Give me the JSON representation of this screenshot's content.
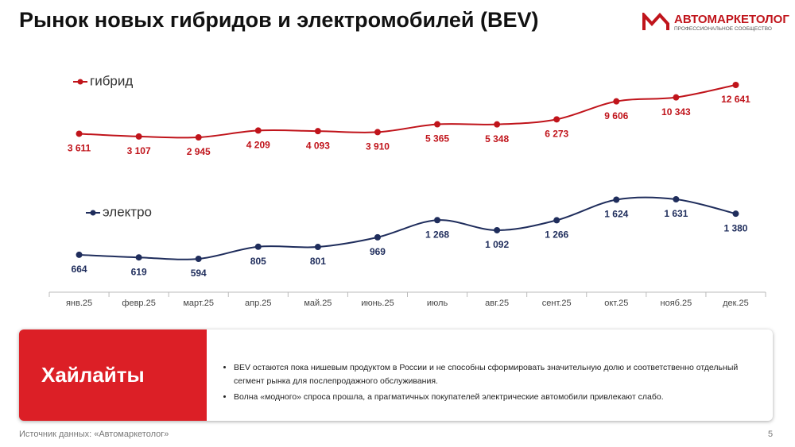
{
  "header": {
    "title": "Рынок новых гибридов и электромобилей (BEV)",
    "logo_name": "АВТОМАРКЕТОЛОГ",
    "logo_tagline": "ПРОФЕССИОНАЛЬНОЕ СООБЩЕСТВО"
  },
  "chart_data": {
    "type": "line",
    "categories": [
      "янв.25",
      "февр.25",
      "март.25",
      "апр.25",
      "май.25",
      "июнь.25",
      "июль",
      "авг.25",
      "сент.25",
      "окт.25",
      "нояб.25",
      "дек.25"
    ],
    "series": [
      {
        "name": "гибрид",
        "color": "#c0141b",
        "values": [
          3611,
          3107,
          2945,
          4209,
          4093,
          3910,
          5365,
          5348,
          6273,
          9606,
          10343,
          12641
        ],
        "value_labels": [
          "3 611",
          "3 107",
          "2 945",
          "4 209",
          "4 093",
          "3 910",
          "5 365",
          "5 348",
          "6 273",
          "9 606",
          "10 343",
          "12 641"
        ]
      },
      {
        "name": "электро",
        "color": "#1f2d5c",
        "values": [
          664,
          619,
          594,
          805,
          801,
          969,
          1268,
          1092,
          1266,
          1624,
          1631,
          1380
        ],
        "value_labels": [
          "664",
          "619",
          "594",
          "805",
          "801",
          "969",
          "1 268",
          "1 092",
          "1 266",
          "1 624",
          "1 631",
          "1 380"
        ]
      }
    ]
  },
  "highlights": {
    "title": "Хайлайты",
    "bullets": [
      "BEV остаются пока нишевым продуктом в России и не способны сформировать значительную долю и соответственно отдельный сегмент рынка для послепродажного обслуживания.",
      "Волна «модного» спроса прошла, а прагматичных покупателей электрические автомобили привлекают слабо."
    ]
  },
  "footer": {
    "source": "Источник данных: «Автомаркетолог»",
    "page": "5"
  }
}
